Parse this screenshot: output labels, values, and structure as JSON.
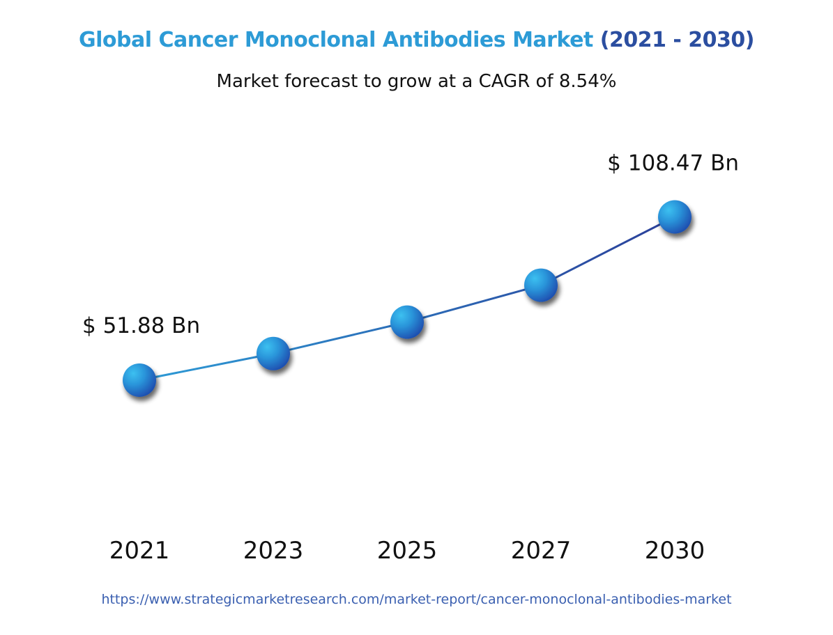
{
  "title_part1": "Global Cancer Monoclonal Antibodies Market ",
  "title_part2": "(2021 - 2030)",
  "subtitle": "Market forecast to grow at a CAGR of 8.54%",
  "source_url": "https://www.strategicmarketresearch.com/market-report/cancer-monoclonal-antibodies-market",
  "colors": {
    "title_light": "#2d9bd6",
    "title_dark": "#2b4ea0",
    "line_start": "#2d9bd6",
    "line_end": "#2b3f99",
    "marker_light": "#3cc0f0",
    "marker_dark": "#1e4fb0",
    "grid": "#555555",
    "url": "#3a5fb0"
  },
  "chart_data": {
    "type": "line",
    "title": "Global Cancer Monoclonal Antibodies Market (2021 - 2030)",
    "subtitle": "Market forecast to grow at a CAGR of 8.54%",
    "categories": [
      "2021",
      "2023",
      "2025",
      "2027",
      "2030"
    ],
    "series": [
      {
        "values": [
          51.88,
          61.1,
          72.0,
          84.8,
          108.47
        ]
      }
    ],
    "ylim": [
      0,
      125
    ],
    "grid": true,
    "annotations": [
      {
        "category": "2021",
        "label": "$ 51.88 Bn"
      },
      {
        "category": "2030",
        "label": "$ 108.47 Bn"
      }
    ]
  }
}
